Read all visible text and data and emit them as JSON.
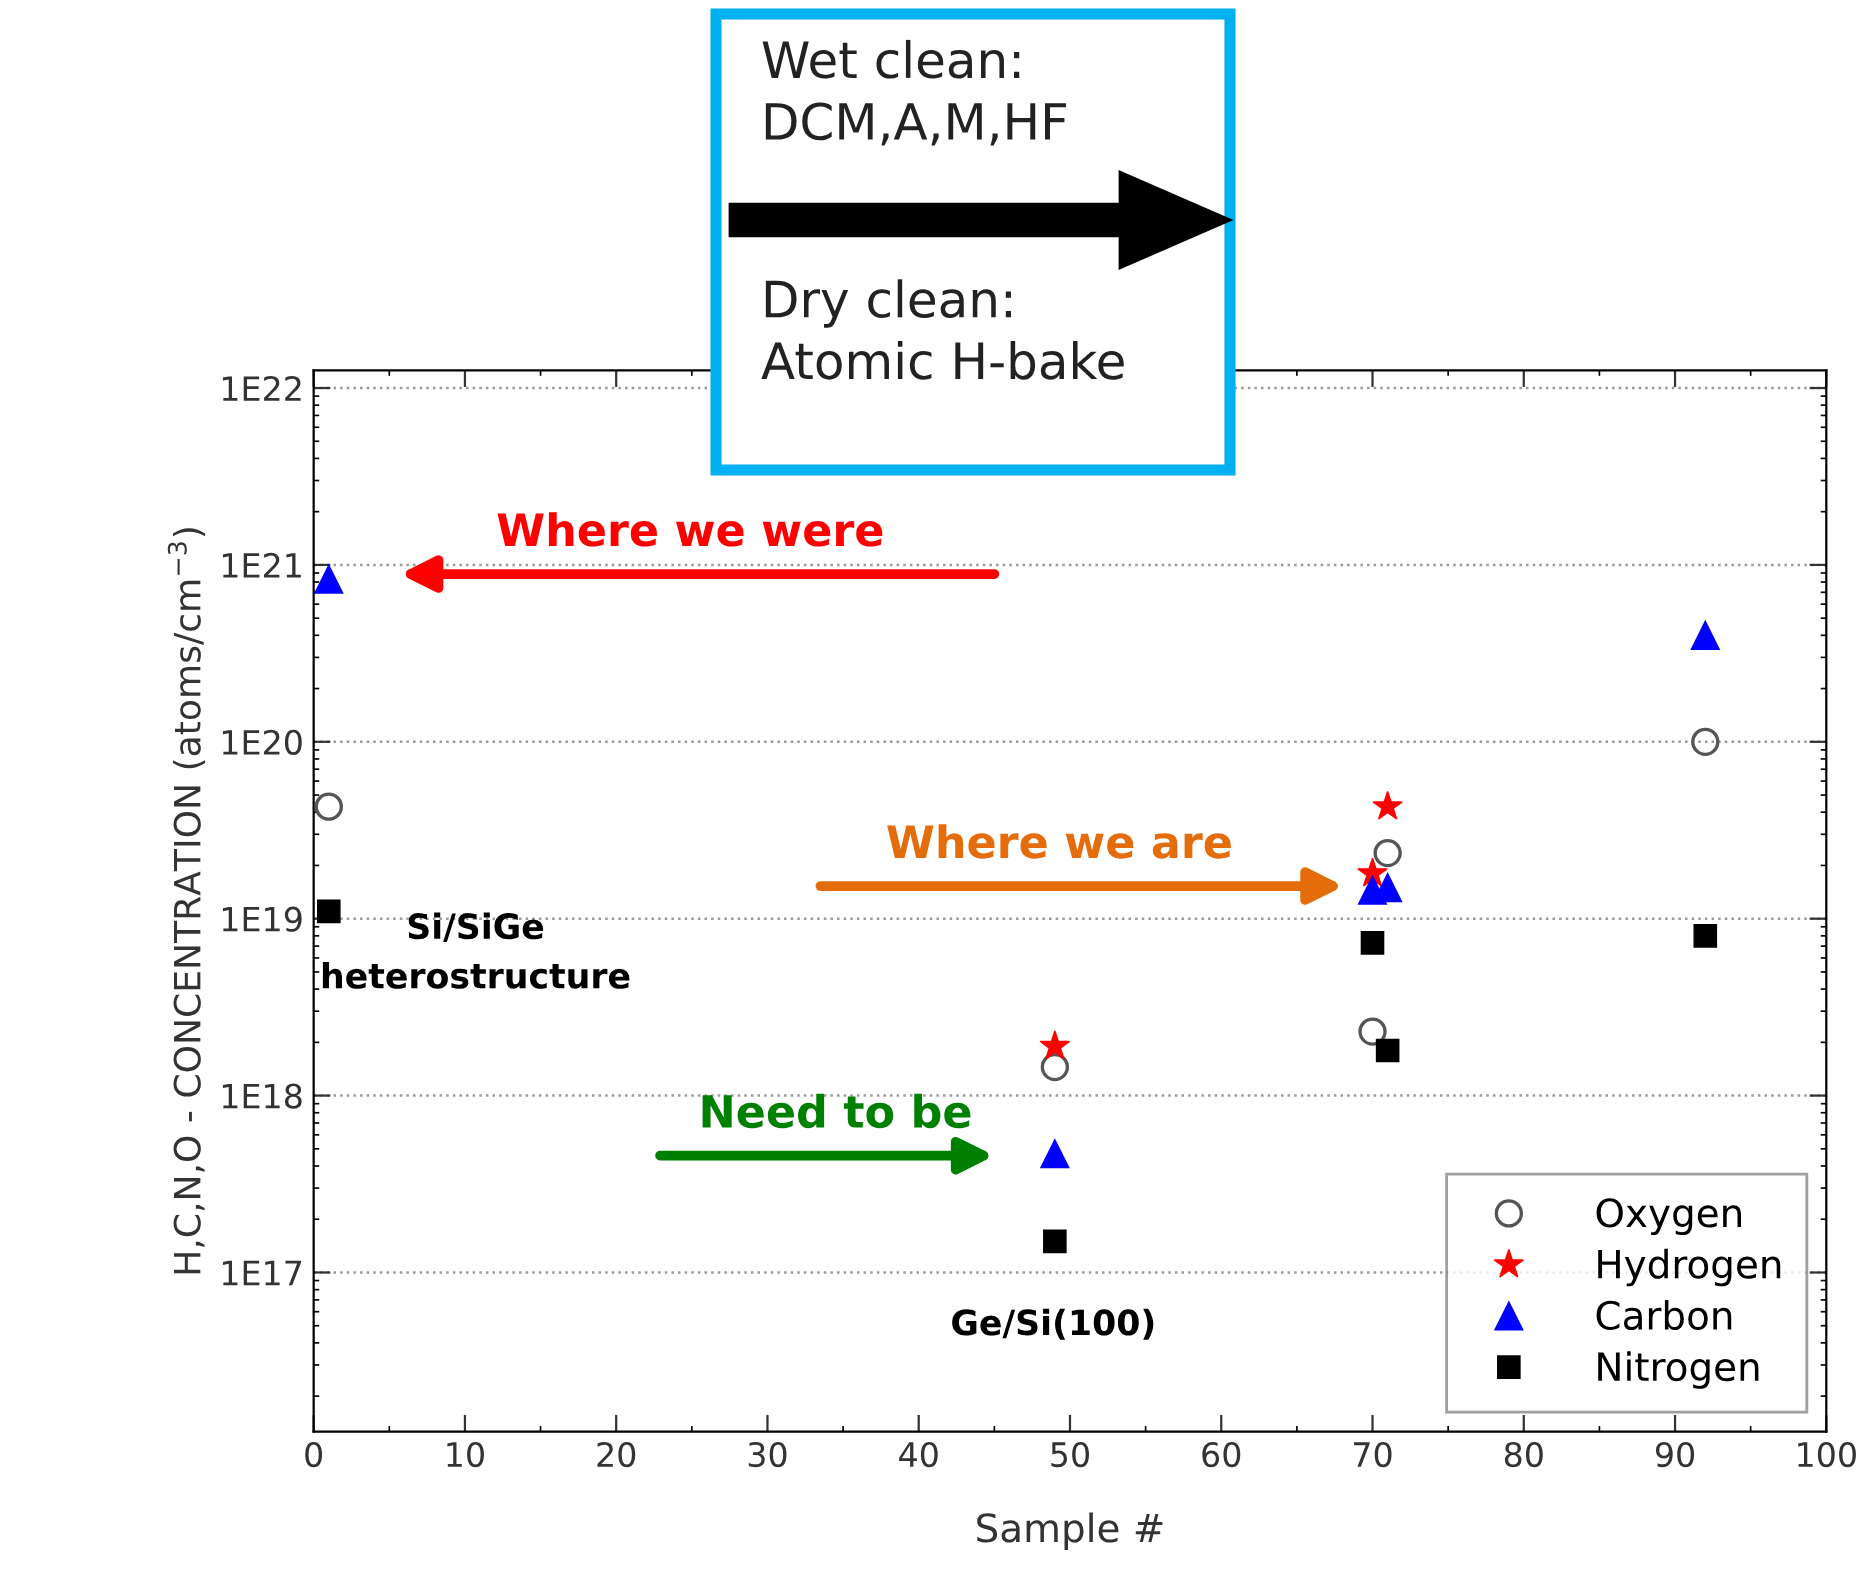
{
  "chart_data": {
    "type": "scatter",
    "xlabel": "Sample #",
    "ylabel": "H,C,N,O - CONCENTRATION (atoms/cm$^{−3}$)",
    "log": "y",
    "xlim": [
      0,
      100
    ],
    "xticks": [
      0,
      10,
      20,
      30,
      40,
      50,
      60,
      70,
      80,
      90,
      100
    ],
    "ylim": [
      1.26e+16,
      1.26e+22
    ],
    "yticks": [
      {
        "value": 1e+17,
        "label": "1E17"
      },
      {
        "value": 1e+18,
        "label": "1E18"
      },
      {
        "value": 1e+19,
        "label": "1E19"
      },
      {
        "value": 1e+20,
        "label": "1E20"
      },
      {
        "value": 1e+21,
        "label": "1E21"
      },
      {
        "value": 1e+22,
        "label": "1E22"
      }
    ],
    "grid": "y",
    "legend": "bottom right",
    "series": [
      {
        "name": "Oxygen",
        "color": "#555555",
        "marker": "circle",
        "x": [
          1,
          49,
          70,
          71,
          92
        ],
        "values": [
          4.3e+19,
          1.45e+18,
          2.3e+18,
          2.35e+19,
          1e+20
        ]
      },
      {
        "name": "Hydrogen",
        "color": "#ff0000",
        "marker": "star",
        "x": [
          49,
          70,
          71
        ],
        "values": [
          1.9e+18,
          1.8e+19,
          4.3e+19
        ]
      },
      {
        "name": "Carbon",
        "color": "#0000ff",
        "marker": "triangle",
        "x": [
          1,
          49,
          70,
          71,
          92
        ],
        "values": [
          8.3e+20,
          4.7e+17,
          1.45e+19,
          1.5e+19,
          4e+20
        ]
      },
      {
        "name": "Nitrogen",
        "color": "#000000",
        "marker": "square",
        "x": [
          1,
          49,
          70,
          71,
          92
        ],
        "values": [
          1.1e+19,
          1.5e+17,
          7.3e+18,
          1.8e+18,
          8e+18
        ]
      }
    ],
    "annotations": [
      "Wet clean:\nDCM,A,M,HF",
      "Dry clean:\nAtomic H-bake",
      "Where we were",
      "Where we are",
      "Need to be",
      "Si/SiGe\nheterostructure",
      "Ge/Si(100)"
    ]
  }
}
